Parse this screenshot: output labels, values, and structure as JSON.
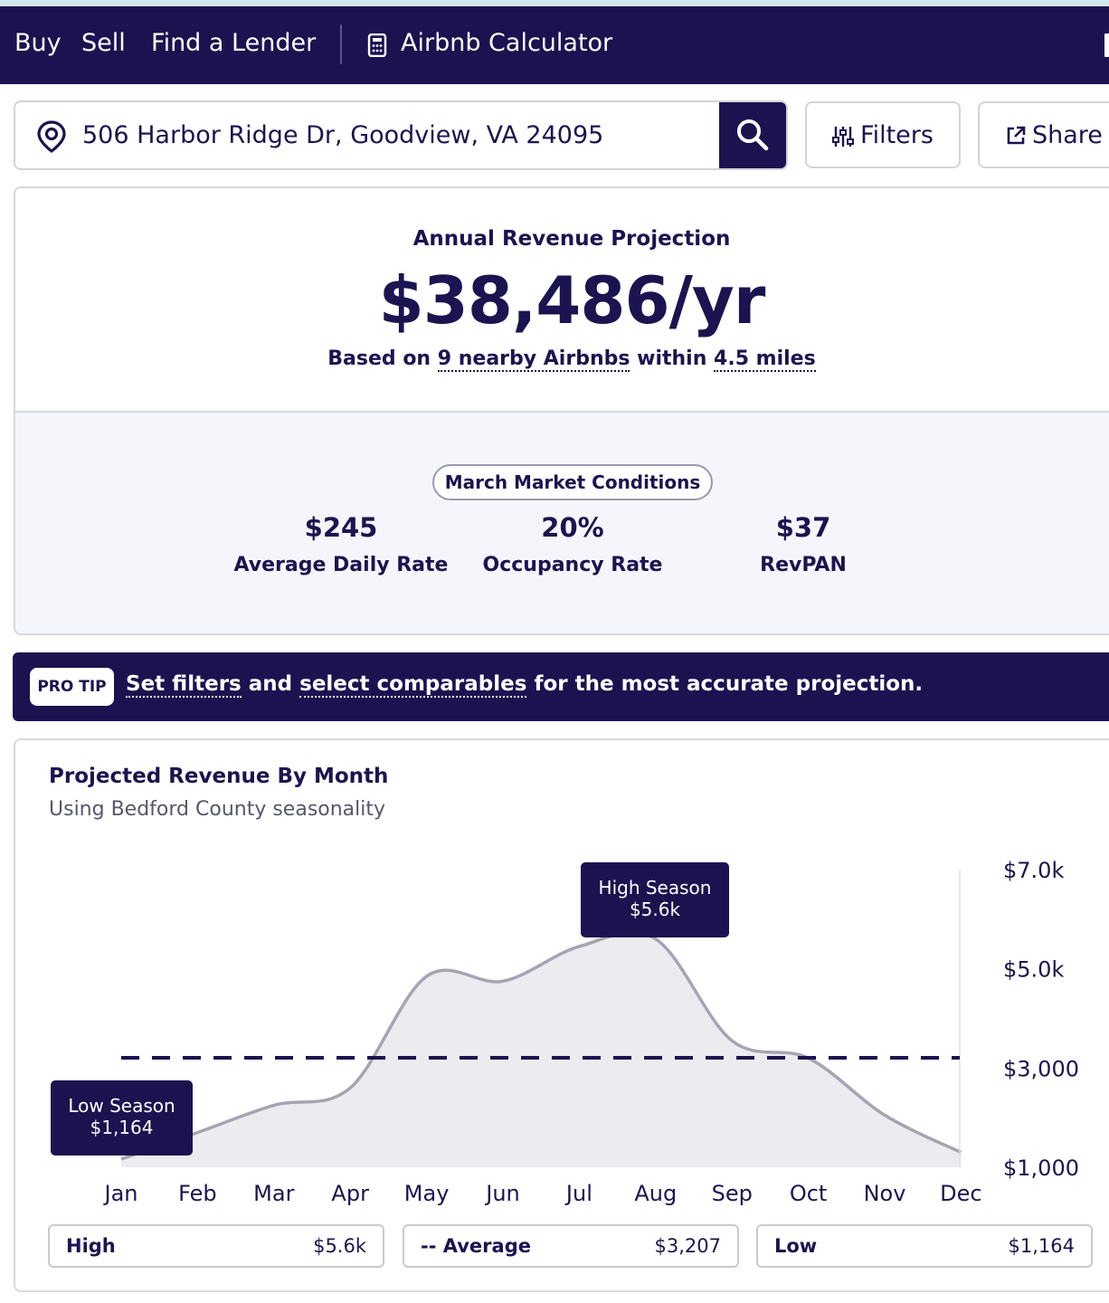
{
  "nav": {
    "links": [
      "Buy",
      "Sell",
      "Find a Lender"
    ],
    "calculator_label": "Airbnb Calculator"
  },
  "search": {
    "address": "506 Harbor Ridge Dr, Goodview, VA 24095",
    "filters_label": "Filters",
    "share_label": "Share"
  },
  "projection": {
    "title": "Annual Revenue Projection",
    "value": "$38,486/yr",
    "basis_prefix": "Based on",
    "nearby_count": "9 nearby Airbnbs",
    "within": "within",
    "radius": "4.5 miles"
  },
  "market": {
    "pill": "March Market Conditions",
    "metrics": [
      {
        "value": "$245",
        "label": "Average Daily Rate"
      },
      {
        "value": "20%",
        "label": "Occupancy Rate"
      },
      {
        "value": "$37",
        "label": "RevPAN"
      }
    ]
  },
  "protip": {
    "badge": "PRO TIP",
    "link1": "Set filters",
    "and": "and",
    "link2": "select comparables",
    "rest": "for the most accurate projection."
  },
  "chart": {
    "title": "Projected Revenue By Month",
    "subtitle": "Using Bedford County seasonality",
    "high_tooltip": [
      "High Season",
      "$5.6k"
    ],
    "low_tooltip": [
      "Low Season",
      "$1,164"
    ]
  },
  "chart_data": {
    "type": "area",
    "categories": [
      "Jan",
      "Feb",
      "Mar",
      "Apr",
      "May",
      "Jun",
      "Jul",
      "Aug",
      "Sep",
      "Oct",
      "Nov",
      "Dec"
    ],
    "values": [
      1164,
      1700,
      2250,
      2600,
      4850,
      4750,
      5450,
      5600,
      3550,
      3200,
      2050,
      1300
    ],
    "average": 3207,
    "y_ticks": [
      "$1,000",
      "$3,000",
      "$5.0k",
      "$7.0k"
    ],
    "y_tick_values": [
      1000,
      3000,
      5000,
      7000
    ],
    "ylim": [
      1000,
      7000
    ],
    "axis_side": "right",
    "colors": {
      "line": "#a5a5b2",
      "fill": "#ececf0",
      "avg": "#1d1250",
      "tooltip": "#1d1250"
    }
  },
  "legend": [
    {
      "name": "High",
      "value": "$5.6k"
    },
    {
      "name": "-- Average",
      "value": "$3,207"
    },
    {
      "name": "Low",
      "value": "$1,164"
    }
  ]
}
